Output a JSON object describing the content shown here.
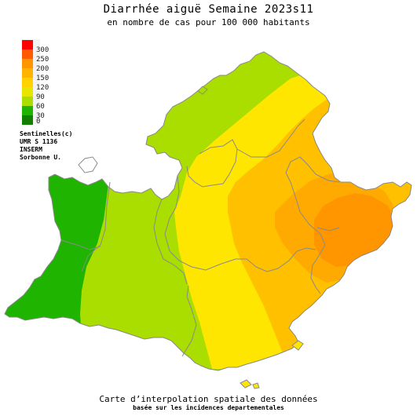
{
  "title": "Diarrhée aiguë Semaine 2023s11",
  "subtitle": "en nombre de cas pour 100 000 habitants",
  "legend": {
    "labels": [
      "300",
      "250",
      "200",
      "150",
      "120",
      "90",
      "60",
      "30",
      "0"
    ],
    "colors": [
      "#ff0000",
      "#ff5a00",
      "#ff9600",
      "#ffb400",
      "#ffd200",
      "#e6e600",
      "#aadd00",
      "#1fb400",
      "#137f00"
    ]
  },
  "credits": [
    "Sentinelles(c)",
    "UMR S 1136",
    "INSERM",
    "Sorbonne U."
  ],
  "footer": {
    "line1": "Carte d’interpolation spatiale des données",
    "line2": "basée sur les incidences departementales"
  },
  "zone_colors": {
    "dark_green": "#1fb400",
    "light_green": "#aadd00",
    "yellow": "#ffe600",
    "light_orange": "#ffc000",
    "orange": "#ffaa00",
    "dark_orange": "#ff9600"
  }
}
